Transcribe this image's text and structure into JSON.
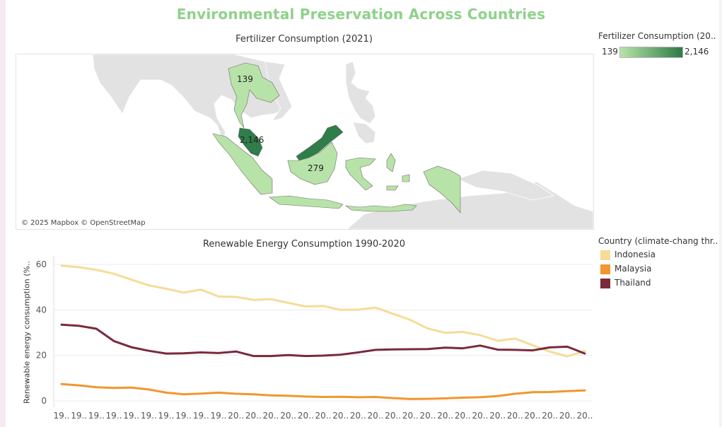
{
  "dashboard": {
    "title": "Environmental Preservation Across Countries"
  },
  "map": {
    "title": "Fertilizer Consumption (2021)",
    "attribution": "© 2025 Mapbox © OpenStreetMap",
    "labels": {
      "thailand": "139",
      "malaysia": "2,146",
      "indonesia": "279"
    },
    "legend": {
      "title": "Fertilizer Consumption (20..",
      "min": "139",
      "max": "2,146",
      "color_low": "#b8e3a8",
      "color_high": "#2e7a48"
    }
  },
  "chart_data": {
    "type": "line",
    "title": "Renewable Energy Consumption 1990-2020",
    "ylabel": "Renewable energy consumption (%..",
    "ylim": [
      0,
      60
    ],
    "yticks": [
      0,
      20,
      40,
      60
    ],
    "x": [
      1990,
      1991,
      1992,
      1993,
      1994,
      1995,
      1996,
      1997,
      1998,
      1999,
      2000,
      2001,
      2002,
      2003,
      2004,
      2005,
      2006,
      2007,
      2008,
      2009,
      2010,
      2011,
      2012,
      2013,
      2014,
      2015,
      2016,
      2017,
      2018,
      2019,
      2020
    ],
    "x_tick_labels": [
      "19..",
      "19..",
      "19..",
      "19..",
      "19..",
      "19..",
      "19..",
      "19..",
      "19..",
      "19..",
      "20..",
      "20..",
      "20..",
      "20..",
      "20..",
      "20..",
      "20..",
      "20..",
      "20..",
      "20..",
      "20..",
      "20..",
      "20..",
      "20..",
      "20..",
      "20..",
      "20..",
      "20..",
      "20..",
      "20..",
      "20.."
    ],
    "series": [
      {
        "name": "Indonesia",
        "color": "#f5dc97",
        "values": [
          59.4,
          58.8,
          57.6,
          55.9,
          53.3,
          50.8,
          49.3,
          47.6,
          48.9,
          45.9,
          45.7,
          44.4,
          44.7,
          43.1,
          41.5,
          41.7,
          40.0,
          40.1,
          41.0,
          38.3,
          35.6,
          31.8,
          29.9,
          30.3,
          28.9,
          26.4,
          27.4,
          24.5,
          21.6,
          19.6,
          21.9
        ]
      },
      {
        "name": "Malaysia",
        "color": "#f2962e",
        "values": [
          7.4,
          6.8,
          6.0,
          5.7,
          5.8,
          5.0,
          3.6,
          2.9,
          3.2,
          3.6,
          3.1,
          2.9,
          2.4,
          2.2,
          1.9,
          1.7,
          1.8,
          1.6,
          1.7,
          1.2,
          0.8,
          0.9,
          1.1,
          1.4,
          1.6,
          2.1,
          3.1,
          3.8,
          3.9,
          4.3,
          4.6
        ]
      },
      {
        "name": "Thailand",
        "color": "#7a2a3c",
        "values": [
          33.5,
          33.0,
          31.7,
          26.3,
          23.6,
          22.0,
          20.8,
          20.9,
          21.3,
          21.0,
          21.7,
          19.7,
          19.7,
          20.1,
          19.7,
          19.9,
          20.3,
          21.3,
          22.4,
          22.6,
          22.7,
          22.8,
          23.4,
          23.1,
          24.3,
          22.5,
          22.4,
          22.2,
          23.5,
          23.8,
          20.8
        ]
      }
    ]
  },
  "legend": {
    "title": "Country (climate-chang thr.."
  }
}
